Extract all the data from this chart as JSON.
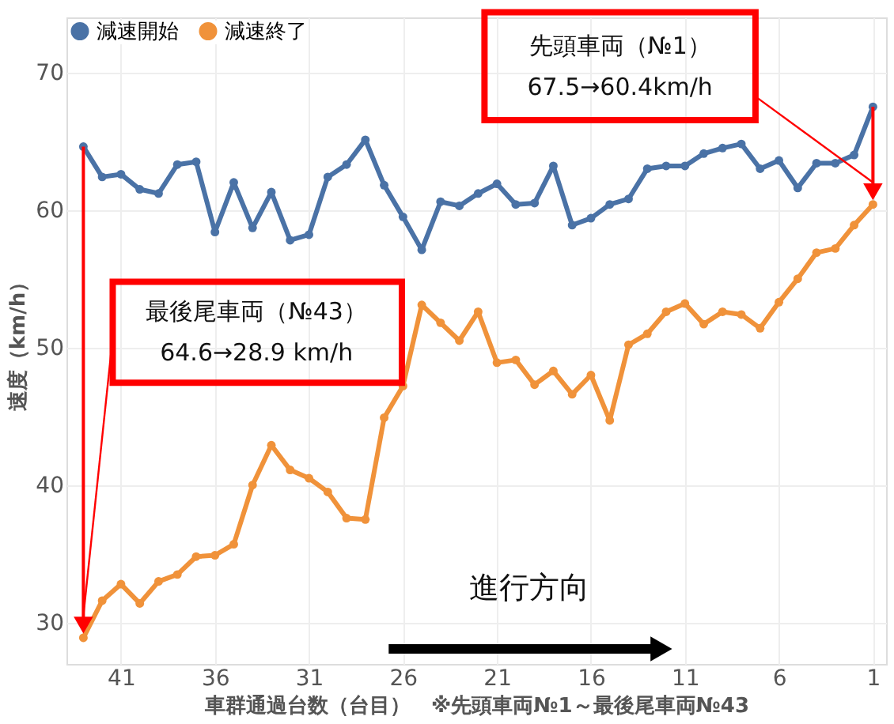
{
  "chart_data": {
    "type": "line",
    "xlabel": "車群通過台数（台目）　※先頭車両№1～最後尾車両№43",
    "ylabel": "速度（km/h）",
    "x": [
      43,
      42,
      41,
      40,
      39,
      38,
      37,
      36,
      35,
      34,
      33,
      32,
      31,
      30,
      29,
      28,
      27,
      26,
      25,
      24,
      23,
      22,
      21,
      20,
      19,
      18,
      17,
      16,
      15,
      14,
      13,
      12,
      11,
      10,
      9,
      8,
      7,
      6,
      5,
      4,
      3,
      2,
      1
    ],
    "series": [
      {
        "name": "減速開始",
        "color": "#4a72a6",
        "values": [
          64.6,
          62.4,
          62.6,
          61.5,
          61.2,
          63.3,
          63.5,
          58.4,
          62.0,
          58.7,
          61.3,
          57.8,
          58.2,
          62.4,
          63.3,
          65.1,
          61.8,
          59.5,
          57.1,
          60.6,
          60.3,
          61.2,
          61.9,
          60.4,
          60.5,
          63.2,
          58.9,
          59.4,
          60.4,
          60.8,
          63.0,
          63.2,
          63.2,
          64.1,
          64.5,
          64.8,
          63.0,
          63.6,
          61.6,
          63.4,
          63.4,
          64.0,
          67.5
        ]
      },
      {
        "name": "減速終了",
        "color": "#f0923a",
        "values": [
          28.9,
          31.6,
          32.8,
          31.4,
          33.0,
          33.5,
          34.8,
          34.9,
          35.7,
          40.0,
          42.9,
          41.1,
          40.5,
          39.5,
          37.6,
          37.5,
          44.9,
          47.2,
          53.1,
          51.8,
          50.5,
          52.6,
          48.9,
          49.1,
          47.3,
          48.3,
          46.6,
          48.0,
          44.7,
          50.2,
          51.0,
          52.6,
          53.2,
          51.7,
          52.6,
          52.4,
          51.4,
          53.3,
          55.0,
          56.9,
          57.2,
          58.9,
          60.4
        ]
      }
    ],
    "xlim": [
      43.9,
      0.3
    ],
    "xticks": [
      41,
      36,
      31,
      26,
      21,
      16,
      11,
      6,
      1
    ],
    "ylim": [
      27,
      74
    ],
    "yticks": [
      30,
      40,
      50,
      60,
      70
    ],
    "grid": true,
    "legend": "top left",
    "marker": "circle",
    "line_style": "solid",
    "annotations": [
      "先頭車両（№1）\n67.5→60.4km/h",
      "最後尾車両（№43）\n64.6→28.9 km/h",
      "進行方向"
    ]
  }
}
